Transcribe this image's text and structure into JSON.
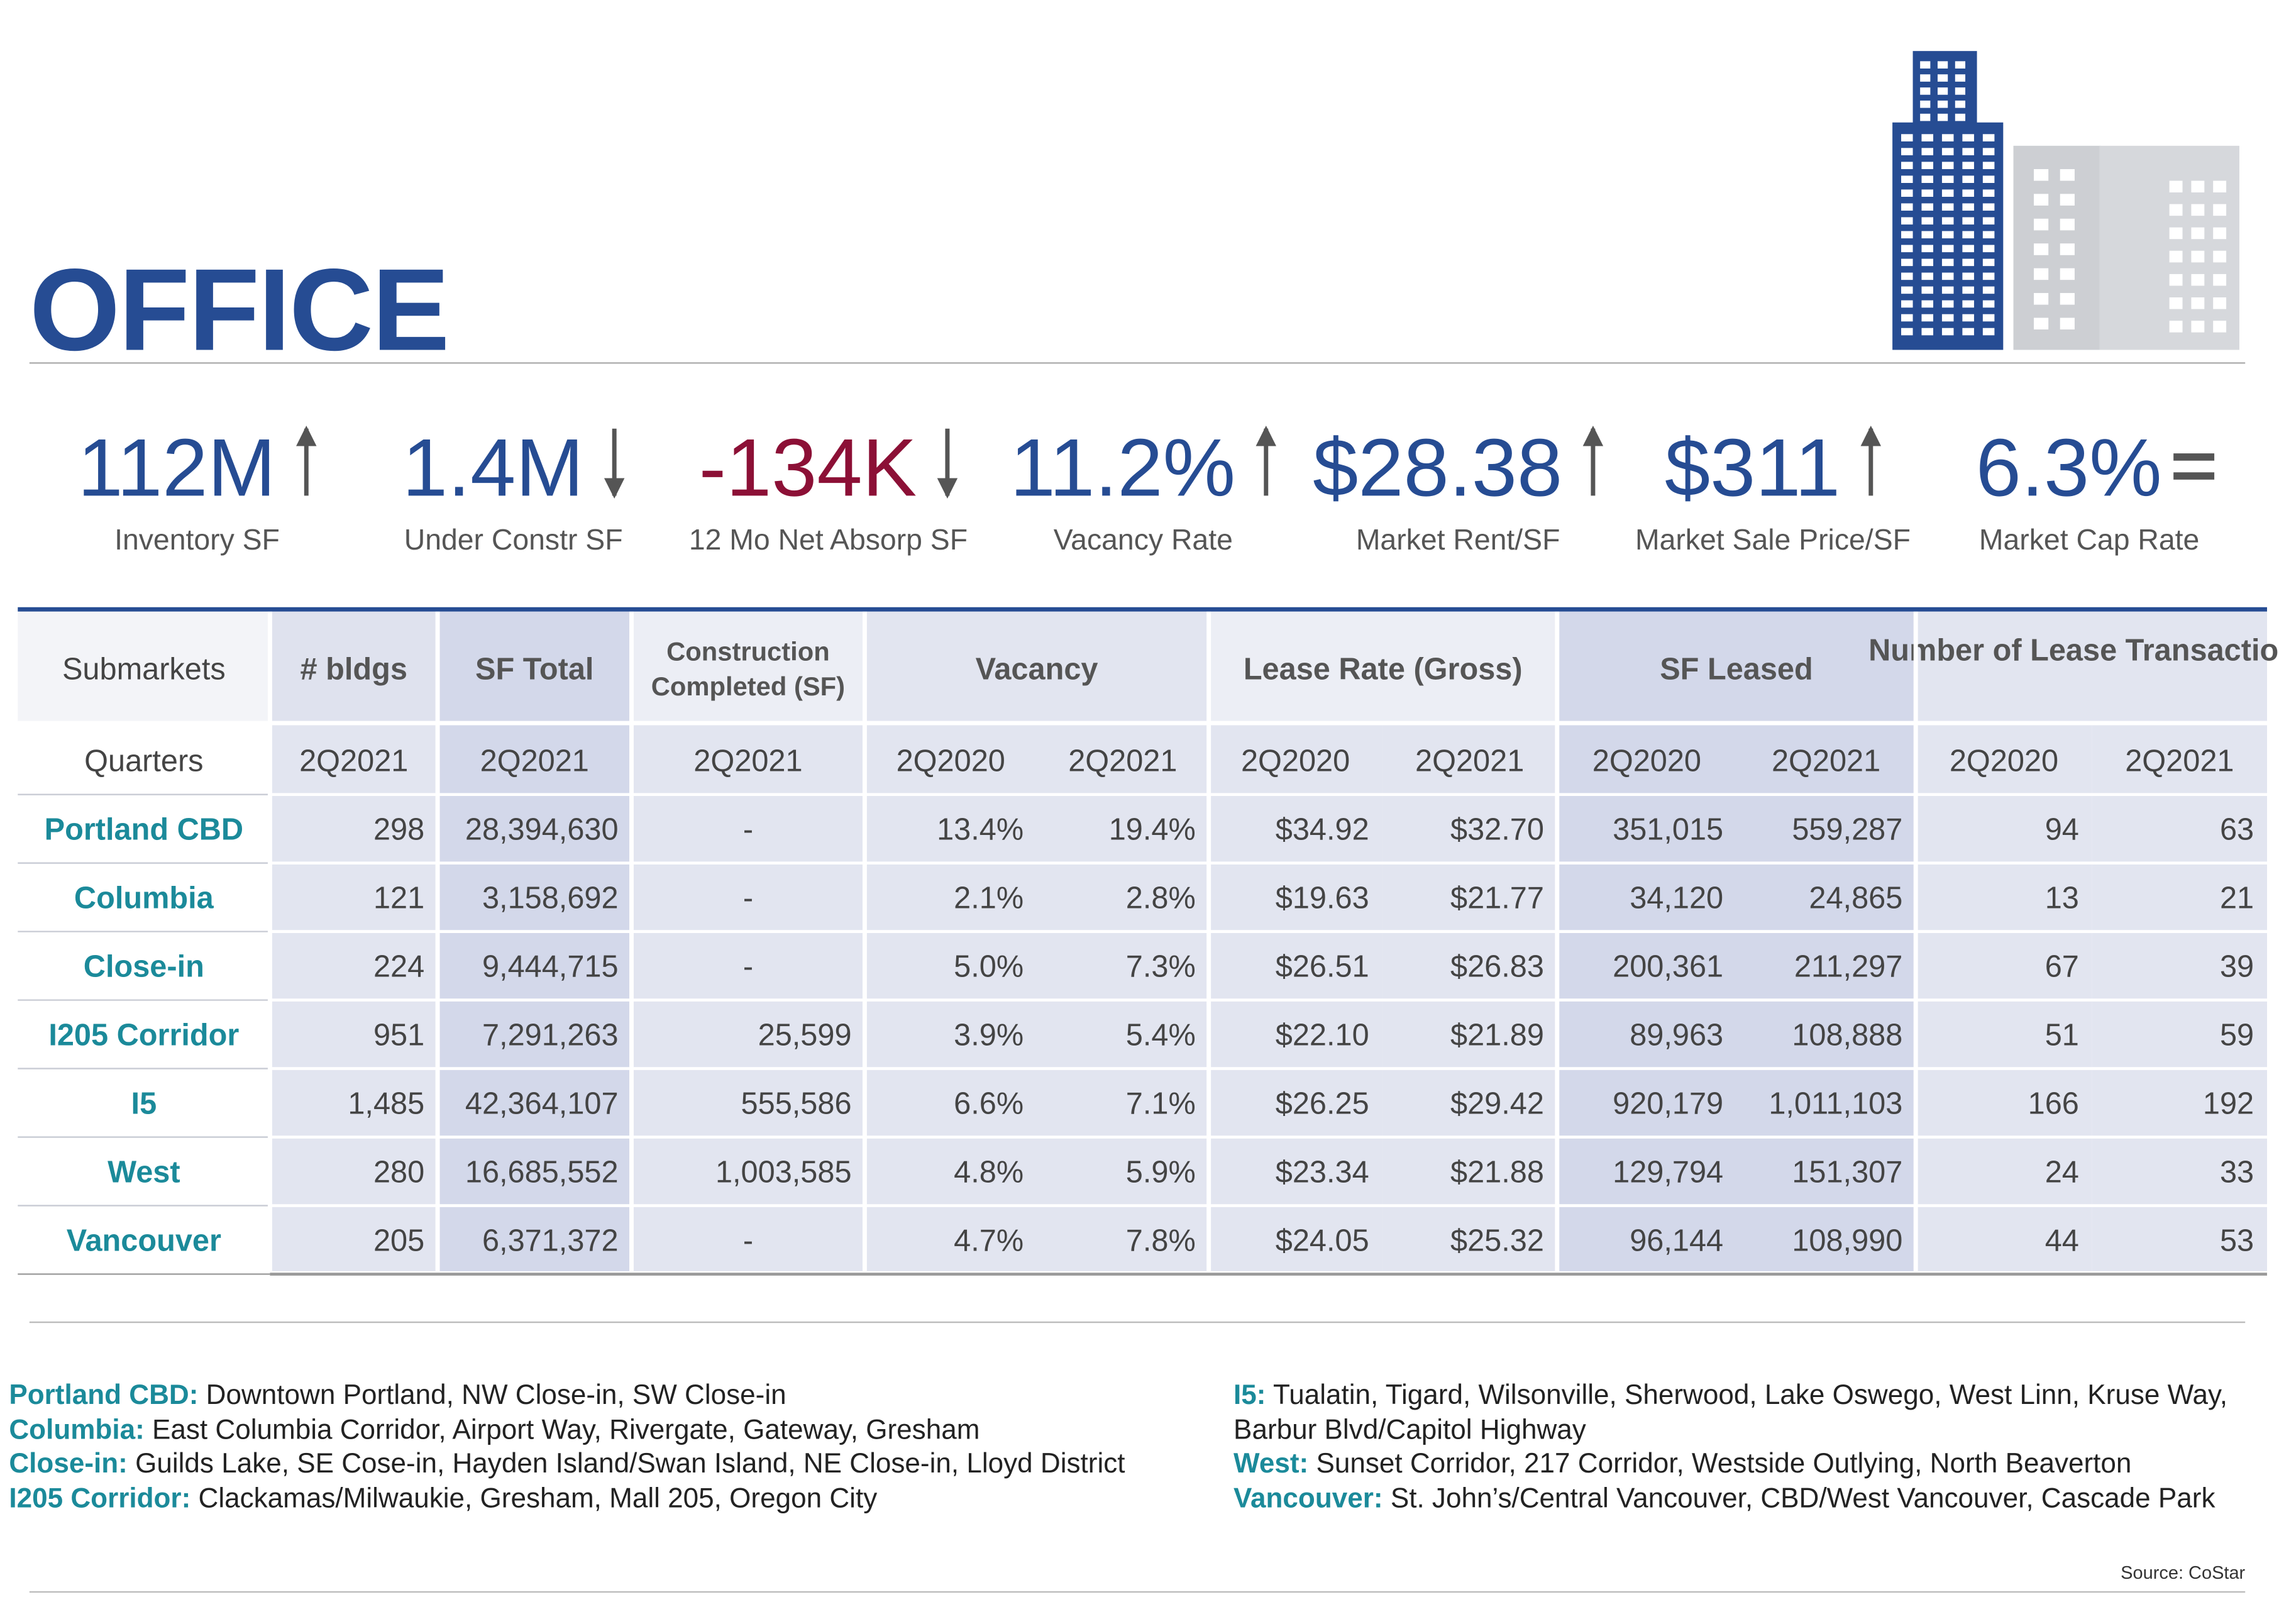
{
  "header": {
    "title": "OFFICE"
  },
  "kpis": [
    {
      "value": "112M",
      "label": "Inventory SF",
      "trend": "up",
      "color": "#264c93"
    },
    {
      "value": "1.4M",
      "label": "Under Constr SF",
      "trend": "down",
      "color": "#264c93"
    },
    {
      "value": "-134K",
      "label": "12 Mo Net Absorp SF",
      "trend": "down",
      "color": "#8c1036"
    },
    {
      "value": "11.2%",
      "label": "Vacancy Rate",
      "trend": "up",
      "color": "#264c93"
    },
    {
      "value": "$28.38",
      "label": "Market Rent/SF",
      "trend": "up",
      "color": "#264c93"
    },
    {
      "value": "$311",
      "label": "Market Sale Price/SF",
      "trend": "up",
      "color": "#264c93"
    },
    {
      "value": "6.3%",
      "label": "Market Cap Rate",
      "trend": "flat",
      "color": "#264c93"
    }
  ],
  "table": {
    "columns": [
      "Submarkets",
      "# bldgs",
      "SF Total",
      "Construction Completed (SF)",
      "Vacancy",
      "Lease Rate (Gross)",
      "SF Leased",
      "Number of Lease Transactions"
    ],
    "quarters": [
      "Quarters",
      "2Q2021",
      "2Q2021",
      "2Q2021",
      "2Q2020",
      "2Q2021",
      "2Q2020",
      "2Q2021",
      "2Q2020",
      "2Q2021",
      "2Q2020",
      "2Q2021"
    ],
    "rows": [
      [
        "Portland CBD",
        "298",
        "28,394,630",
        "-",
        "13.4%",
        "19.4%",
        "$34.92",
        "$32.70",
        "351,015",
        "559,287",
        "94",
        "63"
      ],
      [
        "Columbia",
        "121",
        "3,158,692",
        "-",
        "2.1%",
        "2.8%",
        "$19.63",
        "$21.77",
        "34,120",
        "24,865",
        "13",
        "21"
      ],
      [
        "Close-in",
        "224",
        "9,444,715",
        "-",
        "5.0%",
        "7.3%",
        "$26.51",
        "$26.83",
        "200,361",
        "211,297",
        "67",
        "39"
      ],
      [
        "I205 Corridor",
        "951",
        "7,291,263",
        "25,599",
        "3.9%",
        "5.4%",
        "$22.10",
        "$21.89",
        "89,963",
        "108,888",
        "51",
        "59"
      ],
      [
        "I5",
        "1,485",
        "42,364,107",
        "555,586",
        "6.6%",
        "7.1%",
        "$26.25",
        "$29.42",
        "920,179",
        "1,011,103",
        "166",
        "192"
      ],
      [
        "West",
        "280",
        "16,685,552",
        "1,003,585",
        "4.8%",
        "5.9%",
        "$23.34",
        "$21.88",
        "129,794",
        "151,307",
        "24",
        "33"
      ],
      [
        "Vancouver",
        "205",
        "6,371,372",
        "-",
        "4.7%",
        "7.8%",
        "$24.05",
        "$25.32",
        "96,144",
        "108,990",
        "44",
        "53"
      ]
    ]
  },
  "definitions": [
    {
      "name": "Portland CBD:",
      "text": "Downtown Portland, NW Close-in, SW Close-in"
    },
    {
      "name": "Columbia:",
      "text": "East Columbia Corridor, Airport Way, Rivergate, Gateway, Gresham"
    },
    {
      "name": "Close-in:",
      "text": "Guilds Lake, SE Cose-in, Hayden Island/Swan Island, NE Close-in, Lloyd District"
    },
    {
      "name": "I205 Corridor:",
      "text": "Clackamas/Milwaukie, Gresham, Mall 205, Oregon City"
    },
    {
      "name": "I5:",
      "text": "Tualatin, Tigard, Wilsonville, Sherwood, Lake Oswego, West Linn, Kruse Way, Barbur Blvd/Capitol Highway"
    },
    {
      "name": "West:",
      "text": "Sunset Corridor, 217 Corridor, Westside Outlying, North Beaverton"
    },
    {
      "name": "Vancouver:",
      "text": "St. John’s/Central Vancouver, CBD/West Vancouver, Cascade Park"
    }
  ],
  "source": "Source: CoStar"
}
